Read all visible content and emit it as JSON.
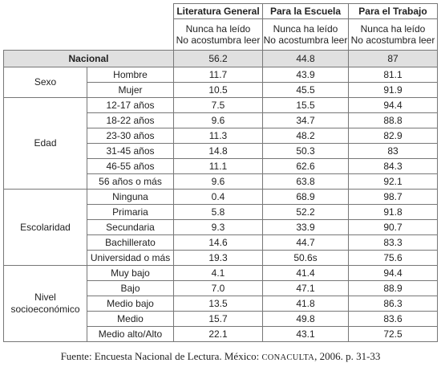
{
  "headers": [
    "Literatura General",
    "Para la Escuela",
    "Para el Trabajo"
  ],
  "subheader_line1": "Nunca ha leído",
  "subheader_line2": "No acostumbra leer",
  "nacional": {
    "label": "Nacional",
    "values": [
      "56.2",
      "44.8",
      "87"
    ]
  },
  "groups": [
    {
      "name_lines": [
        "Sexo"
      ],
      "rows": [
        {
          "label": "Hombre",
          "values": [
            "11.7",
            "43.9",
            "81.1"
          ]
        },
        {
          "label": "Mujer",
          "values": [
            "10.5",
            "45.5",
            "91.9"
          ]
        }
      ]
    },
    {
      "name_lines": [
        "Edad"
      ],
      "rows": [
        {
          "label": "12-17 años",
          "values": [
            "7.5",
            "15.5",
            "94.4"
          ]
        },
        {
          "label": "18-22 años",
          "values": [
            "9.6",
            "34.7",
            "88.8"
          ]
        },
        {
          "label": "23-30 años",
          "values": [
            "11.3",
            "48.2",
            "82.9"
          ]
        },
        {
          "label": "31-45 años",
          "values": [
            "14.8",
            "50.3",
            "83"
          ]
        },
        {
          "label": "46-55 años",
          "values": [
            "11.1",
            "62.6",
            "84.3"
          ]
        },
        {
          "label": "56 años o más",
          "values": [
            "9.6",
            "63.8",
            "92.1"
          ]
        }
      ]
    },
    {
      "name_lines": [
        "Escolaridad"
      ],
      "rows": [
        {
          "label": "Ninguna",
          "values": [
            "0.4",
            "68.9",
            "98.7"
          ]
        },
        {
          "label": "Primaria",
          "values": [
            "5.8",
            "52.2",
            "91.8"
          ]
        },
        {
          "label": "Secundaria",
          "values": [
            "9.3",
            "33.9",
            "90.7"
          ]
        },
        {
          "label": "Bachillerato",
          "values": [
            "14.6",
            "44.7",
            "83.3"
          ]
        },
        {
          "label": "Universidad o más",
          "values": [
            "19.3",
            "50.6s",
            "75.6"
          ]
        }
      ]
    },
    {
      "name_lines": [
        "Nivel",
        "socioeconómico"
      ],
      "rows": [
        {
          "label": "Muy bajo",
          "values": [
            "4.1",
            "41.4",
            "94.4"
          ]
        },
        {
          "label": "Bajo",
          "values": [
            "7.0",
            "47.1",
            "88.9"
          ]
        },
        {
          "label": "Medio bajo",
          "values": [
            "13.5",
            "41.8",
            "86.3"
          ]
        },
        {
          "label": "Medio",
          "values": [
            "15.7",
            "49.8",
            "83.6"
          ]
        },
        {
          "label": "Medio alto/Alto",
          "values": [
            "22.1",
            "43.1",
            "72.5"
          ]
        }
      ]
    }
  ],
  "source": {
    "prefix": "Fuente: Encuesta Nacional de Lectura. México: ",
    "org": "CONACULTA",
    "suffix": ", 2006. p. 31-33"
  }
}
